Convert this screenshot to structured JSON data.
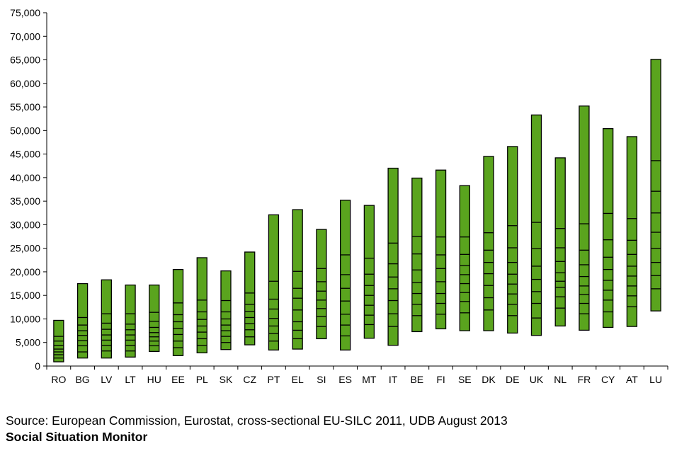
{
  "chart_data": {
    "type": "bar",
    "subtype": "floating-range-bars",
    "categories": [
      "RO",
      "BG",
      "LV",
      "LT",
      "HU",
      "EE",
      "PL",
      "SK",
      "CZ",
      "PT",
      "EL",
      "SI",
      "ES",
      "MT",
      "IT",
      "BE",
      "FI",
      "SE",
      "DK",
      "DE",
      "UK",
      "NL",
      "FR",
      "CY",
      "AT",
      "LU"
    ],
    "bars": [
      {
        "low": 900,
        "high": 9700,
        "dividers": [
          1700,
          2400,
          3000,
          3600,
          4400,
          5300,
          6300
        ]
      },
      {
        "low": 1700,
        "high": 17500,
        "dividers": [
          3000,
          4300,
          5400,
          6500,
          7500,
          8700,
          10300
        ]
      },
      {
        "low": 1700,
        "high": 18300,
        "dividers": [
          3200,
          4400,
          5500,
          6600,
          7800,
          9100,
          11100
        ]
      },
      {
        "low": 1900,
        "high": 17200,
        "dividers": [
          3200,
          4400,
          5500,
          6600,
          7700,
          8900,
          11100
        ]
      },
      {
        "low": 3100,
        "high": 17200,
        "dividers": [
          4300,
          5300,
          6200,
          7100,
          8200,
          9500,
          11400
        ]
      },
      {
        "low": 2200,
        "high": 20500,
        "dividers": [
          3900,
          5300,
          6700,
          8000,
          9400,
          10900,
          13400
        ]
      },
      {
        "low": 2800,
        "high": 23000,
        "dividers": [
          4400,
          5800,
          7200,
          8500,
          9900,
          11500,
          14000
        ]
      },
      {
        "low": 3500,
        "high": 20200,
        "dividers": [
          5000,
          6300,
          7500,
          8700,
          10000,
          11500,
          13900
        ]
      },
      {
        "low": 4500,
        "high": 24200,
        "dividers": [
          6200,
          7700,
          9000,
          10300,
          11600,
          13100,
          15500
        ]
      },
      {
        "low": 3400,
        "high": 32100,
        "dividers": [
          5300,
          6900,
          8500,
          10100,
          12100,
          14200,
          18000
        ]
      },
      {
        "low": 3600,
        "high": 33200,
        "dividers": [
          5800,
          7600,
          9400,
          11900,
          14400,
          16500,
          20100
        ]
      },
      {
        "low": 5800,
        "high": 29000,
        "dividers": [
          8400,
          10500,
          12200,
          14000,
          15900,
          17900,
          20700
        ]
      },
      {
        "low": 3400,
        "high": 35200,
        "dividers": [
          6400,
          8700,
          11000,
          13800,
          16500,
          19400,
          23600
        ]
      },
      {
        "low": 5900,
        "high": 34100,
        "dividers": [
          8800,
          10800,
          12900,
          15000,
          17100,
          19500,
          22900
        ]
      },
      {
        "low": 4400,
        "high": 42000,
        "dividers": [
          8400,
          11100,
          13900,
          16400,
          18900,
          21700,
          26100
        ]
      },
      {
        "low": 7300,
        "high": 39900,
        "dividers": [
          10700,
          13100,
          15400,
          17700,
          20400,
          23800,
          27500
        ]
      },
      {
        "low": 7900,
        "high": 41600,
        "dividers": [
          11000,
          13300,
          15400,
          17900,
          20700,
          23600,
          27400
        ]
      },
      {
        "low": 7500,
        "high": 38300,
        "dividers": [
          11300,
          13700,
          15600,
          17500,
          19400,
          21300,
          23700,
          27400
        ]
      },
      {
        "low": 7500,
        "high": 44500,
        "dividers": [
          11900,
          14500,
          17100,
          19600,
          22000,
          24600,
          28300
        ]
      },
      {
        "low": 7000,
        "high": 46600,
        "dividers": [
          10700,
          13100,
          15300,
          17400,
          19500,
          22000,
          25100,
          29800
        ]
      },
      {
        "low": 6500,
        "high": 53300,
        "dividers": [
          10200,
          13300,
          15800,
          18400,
          21200,
          24900,
          30500
        ]
      },
      {
        "low": 8500,
        "high": 44200,
        "dividers": [
          12300,
          14700,
          16700,
          18000,
          19800,
          22200,
          25100,
          29200
        ]
      },
      {
        "low": 7600,
        "high": 55200,
        "dividers": [
          11100,
          13300,
          15200,
          17000,
          19000,
          21500,
          24600,
          30200
        ]
      },
      {
        "low": 8200,
        "high": 50400,
        "dividers": [
          11500,
          14000,
          16100,
          18200,
          20500,
          23100,
          26800,
          32400
        ]
      },
      {
        "low": 8400,
        "high": 48700,
        "dividers": [
          12600,
          14900,
          17000,
          19100,
          21200,
          23700,
          26700,
          31300
        ]
      },
      {
        "low": 11700,
        "high": 65100,
        "dividers": [
          16400,
          19200,
          22000,
          25000,
          28400,
          32500,
          37100,
          43600
        ]
      }
    ],
    "y_tick_labels": [
      "0",
      "5,000",
      "10,000",
      "15,000",
      "20,000",
      "25,000",
      "30,000",
      "35,000",
      "40,000",
      "45,000",
      "50,000",
      "55,000",
      "60,000",
      "65,000",
      "70,000",
      "75,000"
    ],
    "ylim": [
      0,
      75000
    ],
    "grid": false,
    "colors": {
      "fill": "#5aa41e",
      "stroke": "#000000"
    }
  },
  "footer": {
    "source": "Source: European Commission, Eurostat, cross-sectional EU-SILC 2011, UDB August 2013",
    "monitor": "Social Situation Monitor"
  }
}
